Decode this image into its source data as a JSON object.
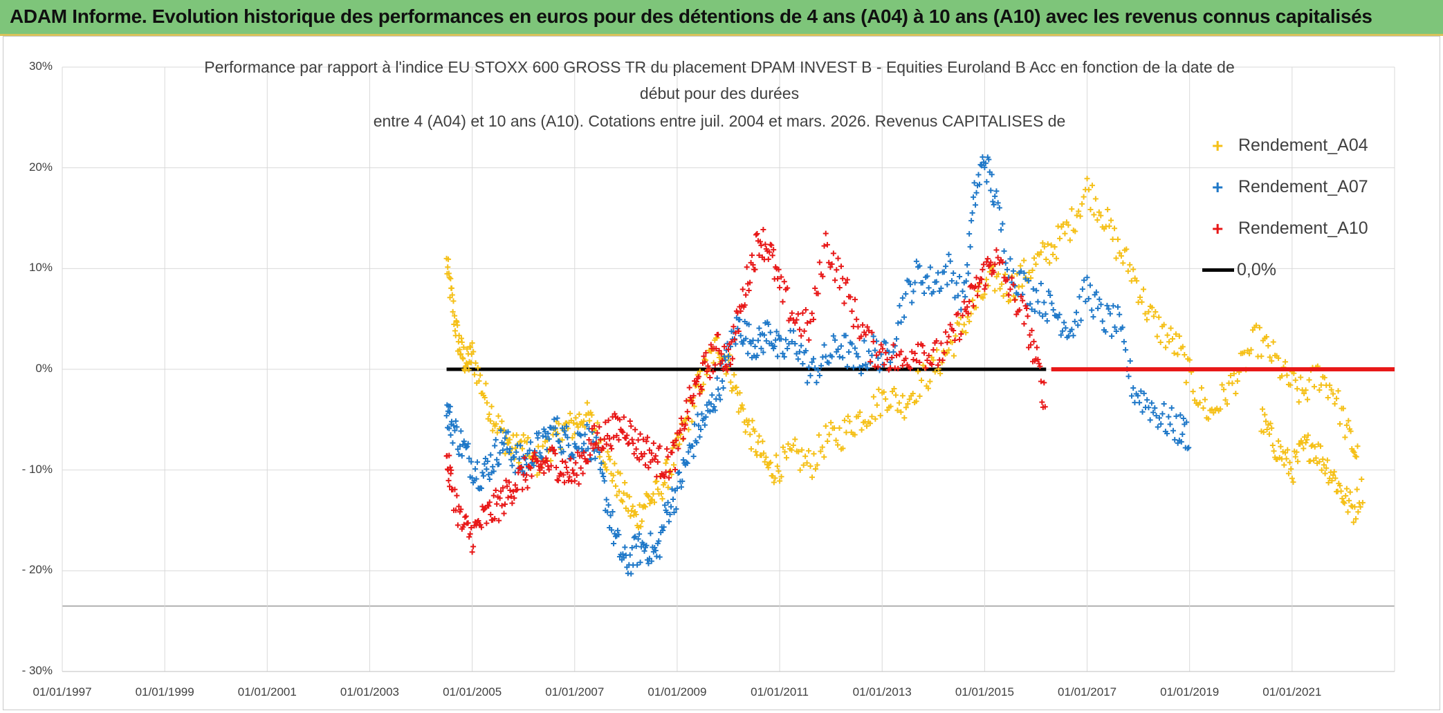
{
  "banner": {
    "title": "ADAM Informe. Evolution historique des performances en euros pour des détentions de 4 ans (A04) à 10 ans (A10) avec les revenus connus capitalisés",
    "background_color": "#7ec57a"
  },
  "chart_data": {
    "type": "scatter",
    "title_lines": [
      "Performance  par rapport à l'indice EU STOXX 600 GROSS TR  du placement DPAM INVEST B - Equities Euroland B Acc en fonction de la date de",
      "début pour des durées",
      "entre 4 (A04) et 10 ans (A10). Cotations entre juil. 2004 et mars. 2026. Revenus CAPITALISES de"
    ],
    "xlabel": "",
    "ylabel": "",
    "xlim": [
      1997.0,
      2023.0
    ],
    "ylim": [
      -30,
      30
    ],
    "y_ticks": [
      {
        "value": 30,
        "label": "30%"
      },
      {
        "value": 20,
        "label": "20%"
      },
      {
        "value": 10,
        "label": "10%"
      },
      {
        "value": 0,
        "label": "0%"
      },
      {
        "value": -10,
        "label": "- 10%"
      },
      {
        "value": -20,
        "label": "- 20%"
      },
      {
        "value": -30,
        "label": "- 30%"
      }
    ],
    "x_ticks": [
      {
        "value": 1997,
        "label": "01/01/1997"
      },
      {
        "value": 1999,
        "label": "01/01/1999"
      },
      {
        "value": 2001,
        "label": "01/01/2001"
      },
      {
        "value": 2003,
        "label": "01/01/2003"
      },
      {
        "value": 2005,
        "label": "01/01/2005"
      },
      {
        "value": 2007,
        "label": "01/01/2007"
      },
      {
        "value": 2009,
        "label": "01/01/2009"
      },
      {
        "value": 2011,
        "label": "01/01/2011"
      },
      {
        "value": 2013,
        "label": "01/01/2013"
      },
      {
        "value": 2015,
        "label": "01/01/2015"
      },
      {
        "value": 2017,
        "label": "01/01/2017"
      },
      {
        "value": 2019,
        "label": "01/01/2019"
      },
      {
        "value": 2021,
        "label": "01/01/2021"
      }
    ],
    "grid": true,
    "legend_position": "top-right",
    "series": [
      {
        "name": "Rendement_A04",
        "color": "#f5c018",
        "x": [
          2004.5,
          2004.6,
          2004.7,
          2004.8,
          2004.9,
          2005.0,
          2005.2,
          2005.4,
          2005.6,
          2005.8,
          2006.0,
          2006.2,
          2006.4,
          2006.6,
          2006.8,
          2007.0,
          2007.2,
          2007.4,
          2007.6,
          2007.8,
          2008.0,
          2008.2,
          2008.4,
          2008.6,
          2008.8,
          2009.0,
          2009.2,
          2009.4,
          2009.6,
          2009.8,
          2010.0,
          2010.2,
          2010.4,
          2010.6,
          2010.8,
          2011.0,
          2011.3,
          2011.6,
          2011.9,
          2012.2,
          2012.5,
          2012.8,
          2013.1,
          2013.4,
          2013.7,
          2014.0,
          2014.3,
          2014.6,
          2014.9,
          2015.2,
          2015.5,
          2015.8,
          2016.1,
          2016.4,
          2016.7,
          2017.0,
          2017.3,
          2017.6,
          2017.9,
          2018.2,
          2018.5,
          2018.8,
          2019.1,
          2019.4,
          2019.7,
          2020.0,
          2020.3,
          2020.6,
          2020.9,
          2021.2,
          2021.5,
          2021.8,
          2022.1,
          2022.3
        ],
        "y": [
          10.5,
          7.0,
          3.5,
          1.5,
          0.5,
          1.5,
          -2.0,
          -4.5,
          -6.5,
          -8.0,
          -7.5,
          -9.5,
          -8.5,
          -7.0,
          -6.0,
          -5.5,
          -4.5,
          -6.0,
          -8.5,
          -11.0,
          -13.0,
          -15.0,
          -13.0,
          -12.5,
          -10.5,
          -8.0,
          -5.0,
          -2.0,
          0.5,
          2.5,
          0.5,
          -3.0,
          -6.0,
          -8.0,
          -10.0,
          -9.5,
          -8.5,
          -9.5,
          -7.0,
          -6.5,
          -5.0,
          -4.0,
          -2.5,
          -3.5,
          -1.5,
          0.0,
          2.0,
          4.5,
          7.0,
          9.0,
          8.0,
          9.5,
          11.0,
          12.5,
          14.5,
          18.0,
          15.5,
          12.0,
          9.5,
          5.5,
          3.5,
          2.0,
          -2.0,
          -4.5,
          -2.5,
          0.0,
          3.0,
          1.5,
          -1.0,
          -2.5,
          -0.5,
          -2.0,
          -6.5,
          -9.0
        ],
        "x2": [
          2020.4,
          2020.6,
          2020.8,
          2021.0,
          2021.2,
          2021.4,
          2021.6,
          2021.8,
          2022.0,
          2022.2,
          2022.4
        ],
        "y2": [
          -5.0,
          -7.0,
          -8.5,
          -10.0,
          -8.0,
          -7.5,
          -9.0,
          -10.5,
          -12.5,
          -14.0,
          -11.5
        ]
      },
      {
        "name": "Rendement_A07",
        "color": "#1f78c8",
        "x": [
          2004.5,
          2004.6,
          2004.8,
          2005.0,
          2005.2,
          2005.4,
          2005.6,
          2005.8,
          2006.0,
          2006.2,
          2006.4,
          2006.6,
          2006.8,
          2007.0,
          2007.2,
          2007.4,
          2007.6,
          2007.8,
          2008.0,
          2008.2,
          2008.4,
          2008.6,
          2008.8,
          2009.0,
          2009.2,
          2009.4,
          2009.6,
          2009.8,
          2010.0,
          2010.2,
          2010.4,
          2010.6,
          2010.8,
          2011.0,
          2011.3,
          2011.6,
          2011.9,
          2012.2,
          2012.5,
          2012.8,
          2013.1,
          2013.4,
          2013.7,
          2014.0,
          2014.3,
          2014.6,
          2014.8,
          2015.0,
          2015.2,
          2015.5,
          2015.8,
          2016.1,
          2016.4,
          2016.7,
          2017.0,
          2017.3,
          2017.6,
          2017.9,
          2018.2,
          2018.5,
          2018.8,
          2019.0
        ],
        "y": [
          -4.0,
          -5.5,
          -7.5,
          -9.5,
          -10.5,
          -9.0,
          -7.0,
          -8.5,
          -9.5,
          -8.0,
          -7.5,
          -6.0,
          -7.0,
          -7.5,
          -6.5,
          -8.0,
          -12.5,
          -17.0,
          -19.5,
          -18.0,
          -17.5,
          -18.5,
          -14.0,
          -12.0,
          -9.0,
          -6.0,
          -4.5,
          -2.0,
          1.5,
          4.5,
          3.0,
          2.5,
          4.0,
          1.5,
          3.0,
          -0.5,
          1.0,
          2.5,
          0.5,
          2.0,
          1.0,
          6.5,
          9.5,
          8.5,
          10.0,
          7.0,
          17.0,
          21.0,
          17.0,
          10.0,
          8.0,
          7.0,
          5.5,
          4.0,
          8.0,
          5.0,
          4.5,
          -2.0,
          -3.5,
          -5.0,
          -6.0,
          -6.5
        ]
      },
      {
        "name": "Rendement_A10",
        "color": "#e81818",
        "x": [
          2004.5,
          2004.6,
          2004.8,
          2005.0,
          2005.2,
          2005.4,
          2005.6,
          2005.8,
          2006.0,
          2006.2,
          2006.4,
          2006.6,
          2006.8,
          2007.0,
          2007.2,
          2007.4,
          2007.6,
          2007.8,
          2008.0,
          2008.2,
          2008.4,
          2008.6,
          2008.8,
          2009.0,
          2009.2,
          2009.4,
          2009.6,
          2009.8,
          2010.0,
          2010.2,
          2010.4,
          2010.6,
          2010.8,
          2011.0,
          2011.3,
          2011.6,
          2011.9,
          2012.2,
          2012.5,
          2012.8,
          2013.1,
          2013.4,
          2013.7,
          2014.0,
          2014.3,
          2014.6,
          2014.8,
          2015.0,
          2015.2,
          2015.5,
          2015.8,
          2016.0,
          2016.2
        ],
        "y": [
          -9.0,
          -11.5,
          -15.5,
          -16.5,
          -15.0,
          -14.0,
          -13.0,
          -11.5,
          -10.5,
          -10.0,
          -9.5,
          -9.0,
          -10.0,
          -10.5,
          -8.5,
          -7.0,
          -6.5,
          -6.0,
          -5.5,
          -7.5,
          -8.0,
          -9.0,
          -9.5,
          -8.0,
          -4.0,
          -1.5,
          0.5,
          2.0,
          1.0,
          5.0,
          9.5,
          13.0,
          12.0,
          8.0,
          5.0,
          4.0,
          12.5,
          9.0,
          5.0,
          2.0,
          1.5,
          0.5,
          2.5,
          1.0,
          2.5,
          5.5,
          7.5,
          9.5,
          11.0,
          8.0,
          5.0,
          1.0,
          -3.5
        ],
        "flat_from": 2016.3,
        "flat_to": 2023.0,
        "flat_value": 0.0
      },
      {
        "name": "0,0%",
        "color": "#000000",
        "type": "line",
        "x": [
          2004.5,
          2016.2
        ],
        "y": [
          0,
          0
        ]
      }
    ]
  },
  "legend": {
    "items": [
      {
        "label": "Rendement_A04",
        "color": "#f5c018"
      },
      {
        "label": "Rendement_A07",
        "color": "#1f78c8"
      },
      {
        "label": "Rendement_A10",
        "color": "#e81818"
      },
      {
        "label": "0,0%",
        "color": "#000000"
      }
    ]
  }
}
